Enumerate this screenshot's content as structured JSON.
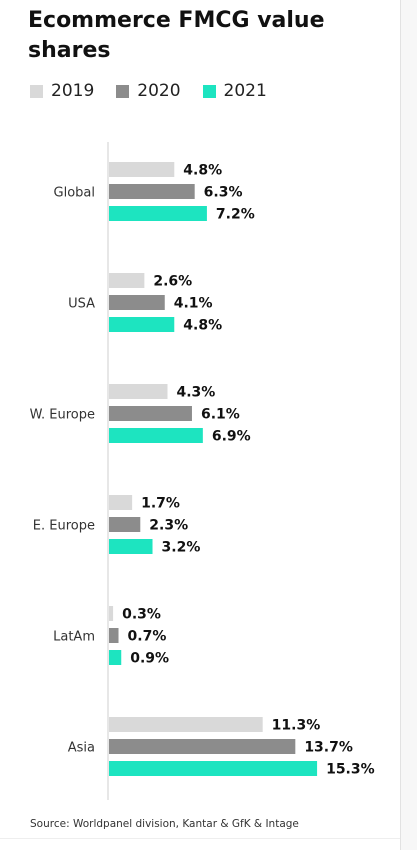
{
  "title": "Ecommerce FMCG value shares",
  "source": "Source: Worldpanel division, Kantar & GfK & Intage",
  "colors": {
    "2019": "#d9d9d9",
    "2020": "#8c8c8c",
    "2021": "#1de4c0",
    "axis": "#cfcfcf"
  },
  "chart_data": {
    "type": "bar",
    "orientation": "horizontal",
    "title": "Ecommerce FMCG value shares",
    "categories": [
      "Global",
      "USA",
      "W. Europe",
      "E. Europe",
      "LatAm",
      "Asia"
    ],
    "series": [
      {
        "name": "2019",
        "values": [
          4.8,
          2.6,
          4.3,
          1.7,
          0.3,
          11.3
        ],
        "labels": [
          "4.8%",
          "2.6%",
          "4.3%",
          "1.7%",
          "0.3%",
          "11.3%"
        ]
      },
      {
        "name": "2020",
        "values": [
          6.3,
          4.1,
          6.1,
          2.3,
          0.7,
          13.7
        ],
        "labels": [
          "6.3%",
          "4.1%",
          "6.1%",
          "2.3%",
          "0.7%",
          "13.7%"
        ]
      },
      {
        "name": "2021",
        "values": [
          7.2,
          4.8,
          6.9,
          3.2,
          0.9,
          15.3
        ],
        "labels": [
          "7.2%",
          "4.8%",
          "6.9%",
          "3.2%",
          "0.9%",
          "15.3%"
        ]
      }
    ],
    "xlim": [
      0,
      15.3
    ],
    "legend_position": "top"
  }
}
